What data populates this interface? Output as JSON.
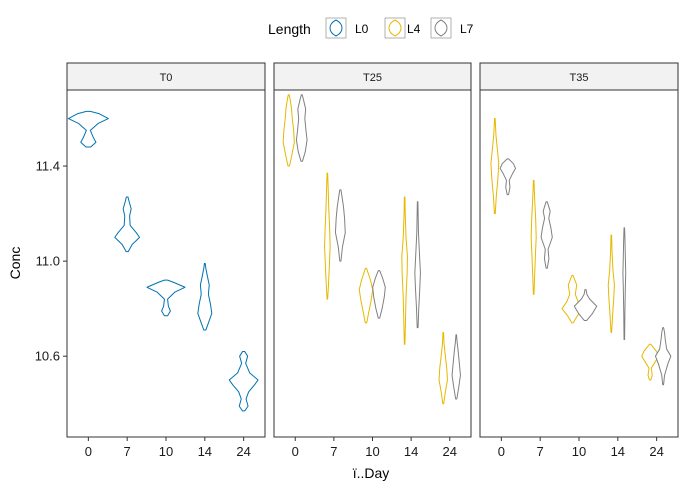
{
  "chart_data": {
    "type": "violin",
    "facet_variable": "",
    "facets": [
      "T0",
      "T25",
      "T35"
    ],
    "categories": [
      "0",
      "7",
      "10",
      "14",
      "24"
    ],
    "xlabel": "ï..Day",
    "ylabel": "Conc",
    "yticks": [
      10.6,
      11.0,
      11.4
    ],
    "ylim": [
      10.26,
      11.72
    ],
    "legend": {
      "title": "Length",
      "position": "top"
    },
    "series": [
      {
        "name": "L0",
        "color": "#0072B2"
      },
      {
        "name": "L4",
        "color": "#E6B800"
      },
      {
        "name": "L7",
        "color": "#808080"
      }
    ],
    "violins": [
      {
        "facet": "T0",
        "day": "0",
        "series": "L0",
        "min": 11.48,
        "max": 11.63,
        "profile": [
          [
            11.48,
            0.12
          ],
          [
            11.5,
            0.38
          ],
          [
            11.52,
            0.25
          ],
          [
            11.55,
            0.1
          ],
          [
            11.58,
            0.5
          ],
          [
            11.6,
            1.0
          ],
          [
            11.62,
            0.55
          ],
          [
            11.63,
            0.1
          ]
        ]
      },
      {
        "facet": "T0",
        "day": "7",
        "series": "L0",
        "min": 11.04,
        "max": 11.27,
        "profile": [
          [
            11.04,
            0.05
          ],
          [
            11.07,
            0.25
          ],
          [
            11.1,
            0.62
          ],
          [
            11.12,
            0.45
          ],
          [
            11.15,
            0.15
          ],
          [
            11.19,
            0.12
          ],
          [
            11.22,
            0.2
          ],
          [
            11.25,
            0.1
          ],
          [
            11.27,
            0.04
          ]
        ]
      },
      {
        "facet": "T0",
        "day": "10",
        "series": "L0",
        "min": 10.77,
        "max": 10.92,
        "profile": [
          [
            10.77,
            0.08
          ],
          [
            10.79,
            0.22
          ],
          [
            10.81,
            0.12
          ],
          [
            10.84,
            0.08
          ],
          [
            10.87,
            0.45
          ],
          [
            10.89,
            0.95
          ],
          [
            10.91,
            0.4
          ],
          [
            10.92,
            0.08
          ]
        ]
      },
      {
        "facet": "T0",
        "day": "14",
        "series": "L0",
        "min": 10.71,
        "max": 10.99,
        "profile": [
          [
            10.71,
            0.05
          ],
          [
            10.74,
            0.18
          ],
          [
            10.78,
            0.35
          ],
          [
            10.82,
            0.28
          ],
          [
            10.86,
            0.18
          ],
          [
            10.9,
            0.22
          ],
          [
            10.94,
            0.12
          ],
          [
            10.97,
            0.05
          ],
          [
            10.99,
            0.02
          ]
        ]
      },
      {
        "facet": "T0",
        "day": "24",
        "series": "L0",
        "min": 10.37,
        "max": 10.62,
        "profile": [
          [
            10.37,
            0.06
          ],
          [
            10.39,
            0.22
          ],
          [
            10.42,
            0.12
          ],
          [
            10.45,
            0.25
          ],
          [
            10.48,
            0.55
          ],
          [
            10.5,
            0.72
          ],
          [
            10.53,
            0.3
          ],
          [
            10.57,
            0.1
          ],
          [
            10.6,
            0.2
          ],
          [
            10.62,
            0.05
          ]
        ]
      },
      {
        "facet": "T25",
        "day": "0",
        "series": "L4",
        "min": 11.4,
        "max": 11.7,
        "profile": [
          [
            11.4,
            0.05
          ],
          [
            11.44,
            0.2
          ],
          [
            11.5,
            0.4
          ],
          [
            11.55,
            0.35
          ],
          [
            11.6,
            0.25
          ],
          [
            11.64,
            0.2
          ],
          [
            11.68,
            0.1
          ],
          [
            11.7,
            0.03
          ]
        ]
      },
      {
        "facet": "T25",
        "day": "0",
        "series": "L7",
        "min": 11.42,
        "max": 11.7,
        "profile": [
          [
            11.42,
            0.05
          ],
          [
            11.46,
            0.25
          ],
          [
            11.51,
            0.38
          ],
          [
            11.55,
            0.3
          ],
          [
            11.6,
            0.22
          ],
          [
            11.64,
            0.28
          ],
          [
            11.68,
            0.12
          ],
          [
            11.7,
            0.03
          ]
        ]
      },
      {
        "facet": "T25",
        "day": "7",
        "series": "L4",
        "min": 10.84,
        "max": 11.37,
        "profile": [
          [
            10.84,
            0.02
          ],
          [
            10.9,
            0.08
          ],
          [
            10.98,
            0.14
          ],
          [
            11.06,
            0.2
          ],
          [
            11.14,
            0.16
          ],
          [
            11.22,
            0.1
          ],
          [
            11.3,
            0.06
          ],
          [
            11.37,
            0.02
          ]
        ]
      },
      {
        "facet": "T25",
        "day": "7",
        "series": "L7",
        "min": 11.0,
        "max": 11.3,
        "profile": [
          [
            11.0,
            0.04
          ],
          [
            11.06,
            0.15
          ],
          [
            11.12,
            0.35
          ],
          [
            11.18,
            0.3
          ],
          [
            11.23,
            0.22
          ],
          [
            11.27,
            0.12
          ],
          [
            11.3,
            0.04
          ]
        ]
      },
      {
        "facet": "T25",
        "day": "10",
        "series": "L4",
        "min": 10.74,
        "max": 10.97,
        "profile": [
          [
            10.74,
            0.05
          ],
          [
            10.78,
            0.18
          ],
          [
            10.83,
            0.35
          ],
          [
            10.88,
            0.48
          ],
          [
            10.92,
            0.32
          ],
          [
            10.95,
            0.15
          ],
          [
            10.97,
            0.04
          ]
        ]
      },
      {
        "facet": "T25",
        "day": "10",
        "series": "L7",
        "min": 10.76,
        "max": 10.96,
        "profile": [
          [
            10.76,
            0.05
          ],
          [
            10.8,
            0.22
          ],
          [
            10.85,
            0.38
          ],
          [
            10.89,
            0.45
          ],
          [
            10.93,
            0.25
          ],
          [
            10.96,
            0.05
          ]
        ]
      },
      {
        "facet": "T25",
        "day": "14",
        "series": "L4",
        "min": 10.65,
        "max": 11.27,
        "profile": [
          [
            10.65,
            0.02
          ],
          [
            10.75,
            0.06
          ],
          [
            10.85,
            0.1
          ],
          [
            10.95,
            0.18
          ],
          [
            11.02,
            0.2
          ],
          [
            11.1,
            0.1
          ],
          [
            11.2,
            0.04
          ],
          [
            11.27,
            0.02
          ]
        ]
      },
      {
        "facet": "T25",
        "day": "14",
        "series": "L7",
        "min": 10.72,
        "max": 11.25,
        "profile": [
          [
            10.72,
            0.03
          ],
          [
            10.8,
            0.08
          ],
          [
            10.88,
            0.15
          ],
          [
            10.95,
            0.2
          ],
          [
            11.02,
            0.14
          ],
          [
            11.12,
            0.06
          ],
          [
            11.25,
            0.02
          ]
        ]
      },
      {
        "facet": "T25",
        "day": "24",
        "series": "L4",
        "min": 10.4,
        "max": 10.7,
        "profile": [
          [
            10.4,
            0.03
          ],
          [
            10.45,
            0.15
          ],
          [
            10.5,
            0.3
          ],
          [
            10.55,
            0.25
          ],
          [
            10.6,
            0.15
          ],
          [
            10.65,
            0.06
          ],
          [
            10.7,
            0.02
          ]
        ]
      },
      {
        "facet": "T25",
        "day": "24",
        "series": "L7",
        "min": 10.42,
        "max": 10.69,
        "profile": [
          [
            10.42,
            0.04
          ],
          [
            10.47,
            0.18
          ],
          [
            10.52,
            0.3
          ],
          [
            10.57,
            0.22
          ],
          [
            10.62,
            0.14
          ],
          [
            10.66,
            0.06
          ],
          [
            10.69,
            0.02
          ]
        ]
      },
      {
        "facet": "T35",
        "day": "0",
        "series": "L4",
        "min": 11.2,
        "max": 11.6,
        "profile": [
          [
            11.2,
            0.03
          ],
          [
            11.27,
            0.1
          ],
          [
            11.35,
            0.22
          ],
          [
            11.41,
            0.28
          ],
          [
            11.47,
            0.18
          ],
          [
            11.53,
            0.08
          ],
          [
            11.6,
            0.02
          ]
        ]
      },
      {
        "facet": "T35",
        "day": "0",
        "series": "L7",
        "min": 11.28,
        "max": 11.43,
        "profile": [
          [
            11.28,
            0.05
          ],
          [
            11.31,
            0.15
          ],
          [
            11.34,
            0.1
          ],
          [
            11.37,
            0.35
          ],
          [
            11.39,
            0.55
          ],
          [
            11.41,
            0.4
          ],
          [
            11.43,
            0.05
          ]
        ]
      },
      {
        "facet": "T35",
        "day": "7",
        "series": "L4",
        "min": 10.86,
        "max": 11.34,
        "profile": [
          [
            10.86,
            0.02
          ],
          [
            10.94,
            0.07
          ],
          [
            11.02,
            0.12
          ],
          [
            11.1,
            0.18
          ],
          [
            11.18,
            0.14
          ],
          [
            11.26,
            0.07
          ],
          [
            11.34,
            0.02
          ]
        ]
      },
      {
        "facet": "T35",
        "day": "7",
        "series": "L7",
        "min": 10.97,
        "max": 11.25,
        "profile": [
          [
            10.97,
            0.04
          ],
          [
            11.01,
            0.16
          ],
          [
            11.05,
            0.1
          ],
          [
            11.1,
            0.4
          ],
          [
            11.14,
            0.3
          ],
          [
            11.18,
            0.15
          ],
          [
            11.21,
            0.25
          ],
          [
            11.25,
            0.04
          ]
        ]
      },
      {
        "facet": "T35",
        "day": "10",
        "series": "L4",
        "min": 10.74,
        "max": 10.94,
        "profile": [
          [
            10.74,
            0.05
          ],
          [
            10.77,
            0.35
          ],
          [
            10.8,
            0.75
          ],
          [
            10.83,
            0.4
          ],
          [
            10.86,
            0.2
          ],
          [
            10.9,
            0.3
          ],
          [
            10.94,
            0.04
          ]
        ]
      },
      {
        "facet": "T35",
        "day": "10",
        "series": "L7",
        "min": 10.75,
        "max": 10.88,
        "profile": [
          [
            10.75,
            0.08
          ],
          [
            10.78,
            0.5
          ],
          [
            10.81,
            0.8
          ],
          [
            10.84,
            0.3
          ],
          [
            10.86,
            0.1
          ],
          [
            10.88,
            0.04
          ]
        ]
      },
      {
        "facet": "T35",
        "day": "14",
        "series": "L4",
        "min": 10.7,
        "max": 11.11,
        "profile": [
          [
            10.7,
            0.02
          ],
          [
            10.78,
            0.1
          ],
          [
            10.85,
            0.18
          ],
          [
            10.9,
            0.22
          ],
          [
            10.96,
            0.12
          ],
          [
            11.04,
            0.05
          ],
          [
            11.11,
            0.02
          ]
        ]
      },
      {
        "facet": "T35",
        "day": "14",
        "series": "L7",
        "min": 10.67,
        "max": 11.14,
        "profile": [
          [
            10.67,
            0.02
          ],
          [
            10.78,
            0.04
          ],
          [
            10.88,
            0.07
          ],
          [
            10.95,
            0.1
          ],
          [
            11.0,
            0.08
          ],
          [
            11.08,
            0.05
          ],
          [
            11.14,
            0.02
          ]
        ]
      },
      {
        "facet": "T35",
        "day": "24",
        "series": "L4",
        "min": 10.5,
        "max": 10.65,
        "profile": [
          [
            10.5,
            0.05
          ],
          [
            10.52,
            0.15
          ],
          [
            10.55,
            0.08
          ],
          [
            10.58,
            0.4
          ],
          [
            10.6,
            0.6
          ],
          [
            10.62,
            0.45
          ],
          [
            10.65,
            0.05
          ]
        ]
      },
      {
        "facet": "T35",
        "day": "24",
        "series": "L7",
        "min": 10.48,
        "max": 10.72,
        "profile": [
          [
            10.48,
            0.03
          ],
          [
            10.52,
            0.1
          ],
          [
            10.57,
            0.35
          ],
          [
            10.6,
            0.55
          ],
          [
            10.63,
            0.25
          ],
          [
            10.67,
            0.15
          ],
          [
            10.7,
            0.1
          ],
          [
            10.72,
            0.03
          ]
        ]
      }
    ]
  }
}
